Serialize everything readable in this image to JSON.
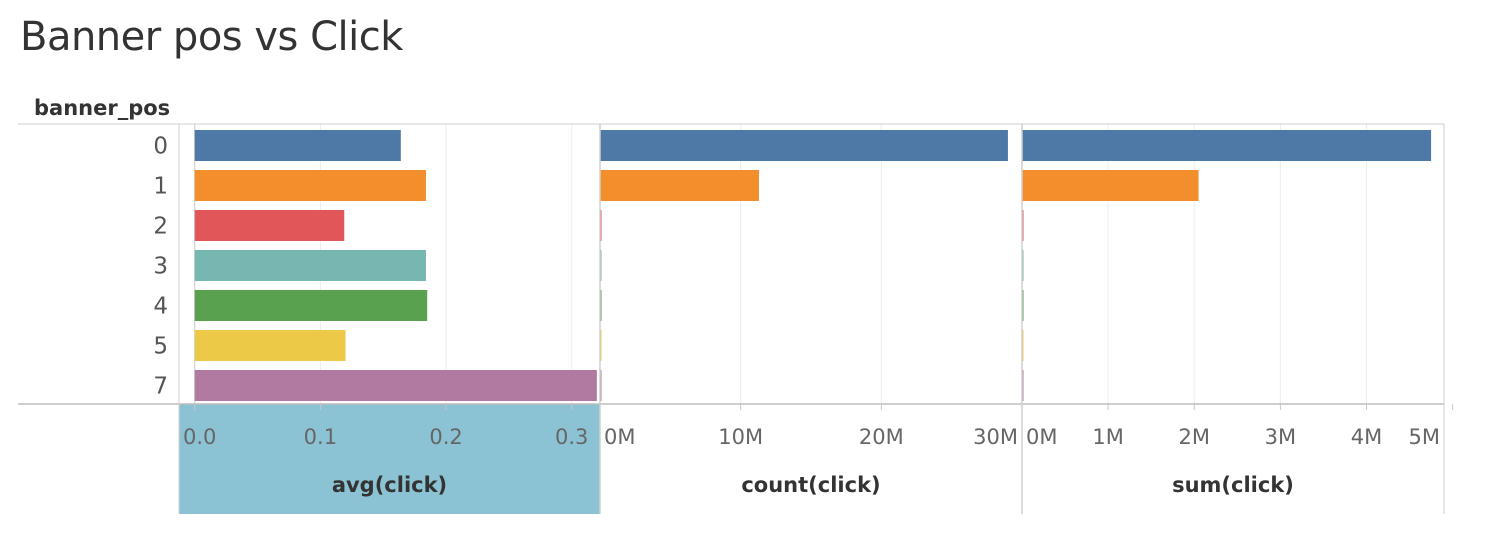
{
  "title": "Banner pos vs Click",
  "row_dimension": "banner_pos",
  "chart_data": {
    "type": "bar",
    "orientation": "horizontal",
    "categories": [
      "0",
      "1",
      "2",
      "3",
      "4",
      "5",
      "7"
    ],
    "colors": [
      "#4e79a7",
      "#f28e2b",
      "#e15759",
      "#76b7b2",
      "#59a14f",
      "#edc948",
      "#b07aa1"
    ],
    "panels": [
      {
        "name": "avg(click)",
        "values": [
          0.164,
          0.184,
          0.119,
          0.184,
          0.185,
          0.12,
          0.32
        ],
        "xlim": [
          -0.0125,
          0.3225
        ],
        "ticks": [
          0.0,
          0.1,
          0.2,
          0.3
        ],
        "tick_labels": [
          "0.0",
          "0.1",
          "0.2",
          "0.3"
        ],
        "highlighted": true
      },
      {
        "name": "count(click)",
        "values": [
          29000000,
          11300000,
          15000,
          45000,
          25000,
          12000,
          8000
        ],
        "xlim": [
          0,
          30000000
        ],
        "ticks": [
          0,
          10000000,
          20000000,
          30000000
        ],
        "tick_labels": [
          "0M",
          "10M",
          "20M",
          "30M"
        ],
        "highlighted": false
      },
      {
        "name": "sum(click)",
        "values": [
          4750000,
          2050000,
          2000,
          8000,
          5000,
          1500,
          2500
        ],
        "xlim": [
          0,
          4900000
        ],
        "ticks": [
          0,
          1000000,
          2000000,
          3000000,
          4000000,
          5000000
        ],
        "tick_labels": [
          "0M",
          "1M",
          "2M",
          "3M",
          "4M",
          "5M"
        ],
        "highlighted": false
      }
    ],
    "grid": true,
    "legend": "none",
    "highlight_color": "#8bc3d4"
  }
}
